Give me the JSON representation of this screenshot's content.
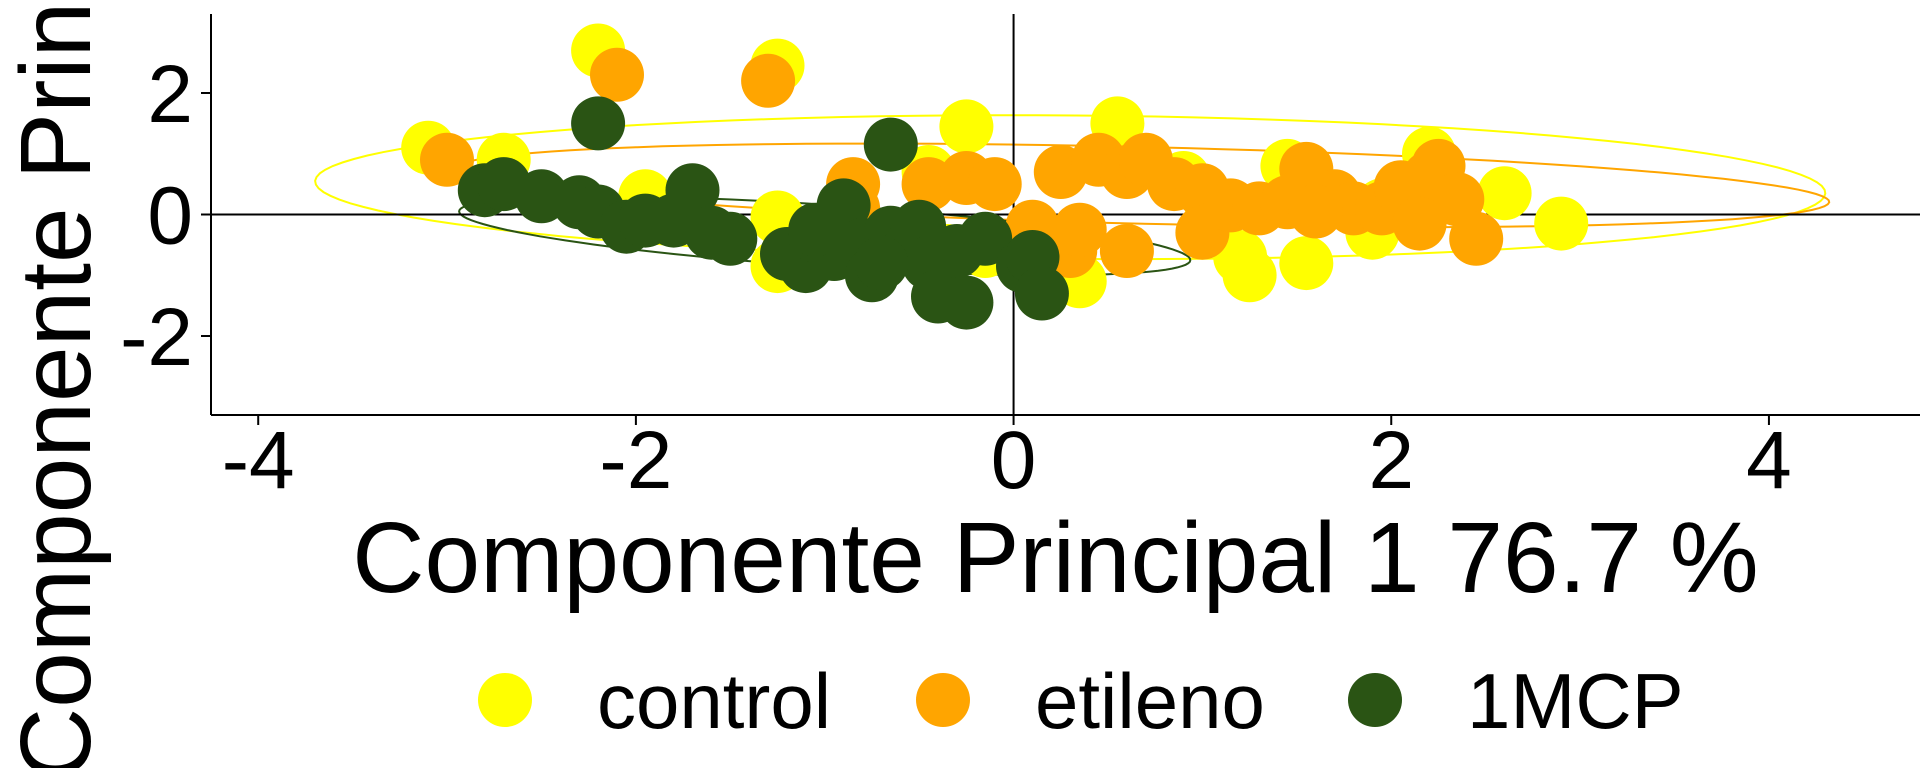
{
  "chart_data": {
    "type": "scatter",
    "xlabel": "Componente Principal 1 76.7 %",
    "ylabel": "Componente Principal",
    "xlim": [
      -4.25,
      4.8
    ],
    "ylim": [
      -3.3,
      3.3
    ],
    "x_ticks": [
      -4,
      -2,
      0,
      2,
      4
    ],
    "y_ticks": [
      -2,
      0,
      2
    ],
    "x_tick_labels": [
      "-4",
      "-2",
      "0",
      "2",
      "4"
    ],
    "y_tick_labels": [
      "-2",
      "0",
      "2"
    ],
    "grid": false,
    "legend_position": "bottom",
    "series": [
      {
        "name": "control",
        "color": "#FFFF00",
        "points": [
          [
            -3.1,
            1.1
          ],
          [
            -2.7,
            0.9
          ],
          [
            -2.2,
            2.7
          ],
          [
            -1.25,
            2.45
          ],
          [
            -0.25,
            1.45
          ],
          [
            -0.45,
            0.7
          ],
          [
            -1.95,
            0.3
          ],
          [
            -1.25,
            -0.05
          ],
          [
            -1.25,
            -0.85
          ],
          [
            -0.35,
            -0.6
          ],
          [
            0.35,
            -1.1
          ],
          [
            0.55,
            1.5
          ],
          [
            0.9,
            0.6
          ],
          [
            1.2,
            -0.7
          ],
          [
            1.25,
            -1.0
          ],
          [
            1.45,
            0.8
          ],
          [
            1.55,
            -0.8
          ],
          [
            1.9,
            -0.3
          ],
          [
            2.2,
            1.0
          ],
          [
            2.6,
            0.35
          ],
          [
            2.9,
            -0.15
          ],
          [
            1.95,
            0.15
          ],
          [
            -0.15,
            -0.6
          ],
          [
            1.05,
            0.0
          ]
        ]
      },
      {
        "name": "etileno",
        "color": "#FFA500",
        "points": [
          [
            -3.0,
            0.9
          ],
          [
            -2.1,
            2.3
          ],
          [
            -1.3,
            2.2
          ],
          [
            -0.85,
            0.5
          ],
          [
            -0.45,
            0.5
          ],
          [
            -0.25,
            0.6
          ],
          [
            -0.1,
            0.5
          ],
          [
            0.1,
            -0.2
          ],
          [
            0.25,
            0.7
          ],
          [
            0.3,
            -0.6
          ],
          [
            0.45,
            0.9
          ],
          [
            0.6,
            -0.6
          ],
          [
            0.6,
            0.7
          ],
          [
            0.7,
            0.9
          ],
          [
            0.85,
            0.5
          ],
          [
            1.0,
            0.4
          ],
          [
            1.0,
            -0.3
          ],
          [
            1.15,
            0.15
          ],
          [
            1.3,
            0.1
          ],
          [
            1.45,
            0.2
          ],
          [
            1.55,
            0.75
          ],
          [
            1.7,
            0.3
          ],
          [
            1.8,
            0.1
          ],
          [
            1.95,
            0.1
          ],
          [
            2.05,
            0.45
          ],
          [
            2.2,
            0.6
          ],
          [
            2.25,
            0.8
          ],
          [
            2.35,
            0.25
          ],
          [
            2.45,
            -0.4
          ],
          [
            2.15,
            -0.15
          ],
          [
            0.35,
            -0.25
          ],
          [
            -0.55,
            -0.35
          ],
          [
            -0.85,
            0.1
          ],
          [
            1.6,
            0.05
          ]
        ]
      },
      {
        "name": "1MCP",
        "color": "#2A5414",
        "points": [
          [
            -2.8,
            0.4
          ],
          [
            -2.7,
            0.5
          ],
          [
            -2.5,
            0.3
          ],
          [
            -2.3,
            0.2
          ],
          [
            -2.2,
            0.05
          ],
          [
            -2.05,
            -0.2
          ],
          [
            -1.95,
            -0.1
          ],
          [
            -1.8,
            -0.1
          ],
          [
            -1.7,
            0.4
          ],
          [
            -1.6,
            -0.3
          ],
          [
            -1.5,
            -0.4
          ],
          [
            -1.2,
            -0.65
          ],
          [
            -1.1,
            -0.85
          ],
          [
            -1.05,
            -0.35
          ],
          [
            -0.95,
            -0.65
          ],
          [
            -0.9,
            0.15
          ],
          [
            -0.8,
            -0.5
          ],
          [
            -0.75,
            -1.0
          ],
          [
            -0.65,
            -0.3
          ],
          [
            -0.55,
            -0.55
          ],
          [
            -0.5,
            -0.2
          ],
          [
            -0.45,
            -0.8
          ],
          [
            -0.4,
            -1.35
          ],
          [
            -0.3,
            -0.6
          ],
          [
            -0.25,
            -1.45
          ],
          [
            -0.15,
            -0.4
          ],
          [
            0.05,
            -0.85
          ],
          [
            0.1,
            -0.7
          ],
          [
            0.15,
            -1.3
          ],
          [
            -0.65,
            1.15
          ],
          [
            -2.2,
            1.5
          ],
          [
            -1.05,
            -0.25
          ],
          [
            -0.7,
            -0.8
          ]
        ]
      }
    ],
    "ellipses": [
      {
        "series": "control",
        "color": "#FFFF00",
        "cx": 0.3,
        "cy": 0.45,
        "rx": 4.0,
        "ry": 1.18,
        "angle_deg": -1.5
      },
      {
        "series": "etileno",
        "color": "#FFA500",
        "cx": 0.68,
        "cy": 0.48,
        "rx": 3.65,
        "ry": 0.63,
        "angle_deg": -4.4
      },
      {
        "series": "1MCP",
        "color": "#2A5414",
        "cx": -1.0,
        "cy": -0.35,
        "rx": 1.98,
        "ry": 0.5,
        "angle_deg": -12.5
      }
    ]
  }
}
